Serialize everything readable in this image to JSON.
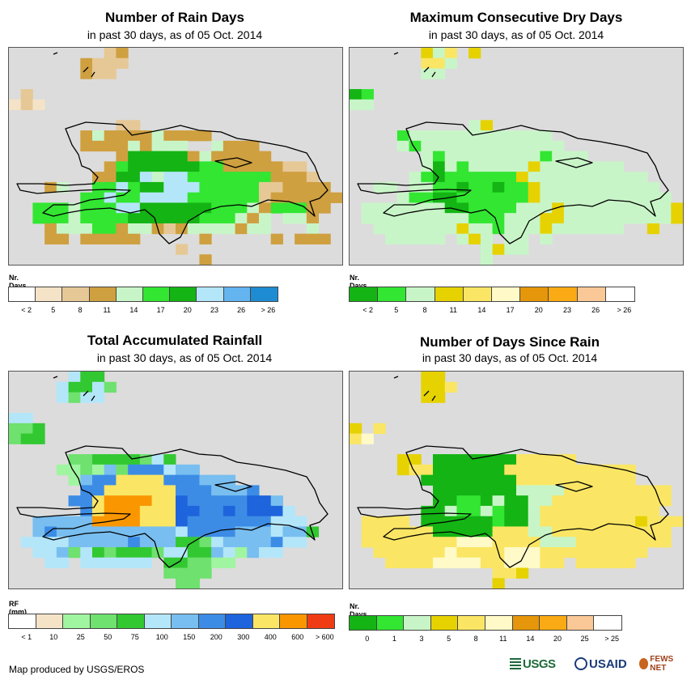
{
  "panels": [
    {
      "id": "rain-days",
      "title": "Number of Rain Days",
      "subtitle": "in past 30 days, as of 05 Oct. 2014",
      "legend_title": "Nr. Days",
      "legend_colors": [
        "#ffffff",
        "#f5e3c8",
        "#e6c896",
        "#cfa040",
        "#c8f5c8",
        "#32e632",
        "#14b414",
        "#b4e6fa",
        "#64b4f0",
        "#1e8cd2"
      ],
      "legend_labels": [
        "< 2",
        "5",
        "8",
        "11",
        "14",
        "17",
        "20",
        "23",
        "26",
        "> 26"
      ],
      "palette": {
        "a": "#f5e3c8",
        "b": "#e6c896",
        "c": "#cfa040",
        "d": "#c8f5c8",
        "e": "#32e632",
        "f": "#14b414",
        "g": "#b4e6fa",
        "h": "#64b4f0"
      },
      "grid": [
        "........bc..................",
        "......cbbb..................",
        "......cbb...................",
        "............................",
        ".b..........................",
        "aba.........................",
        "............................",
        ".........bb.................",
        "......cdccccdcccc...........",
        "......ccccdcddd..dccc.......",
        ".........cfffffcdccccc......",
        "........ceffffffeecccccbb...",
        ".......ccffgdggeeeeeeecccb..",
        "...cd..eegeffgggeeeeebbcccc.",
        "......eegeeggggeeeeeebcccccc",
        "..eeedeeeggffffffeeedceeecc.",
        "..eeedeeeeffffffeeedcd.ddc..",
        "...cdddeecddcbcddddcdd...d..",
        "...cc.ccccc.....c.....c.ccc.",
        "..............b.............",
        "................c..........."
      ]
    },
    {
      "id": "dry-days",
      "title": "Maximum Consecutive Dry Days",
      "subtitle": "in past 30 days, as of 05 Oct. 2014",
      "legend_title": "Nr. Days",
      "legend_colors": [
        "#14b414",
        "#32e632",
        "#c8f5c8",
        "#e6d200",
        "#fae664",
        "#fffac8",
        "#e6960a",
        "#faaa14",
        "#fac896",
        "#ffffff"
      ],
      "legend_labels": [
        "< 2",
        "5",
        "8",
        "11",
        "14",
        "17",
        "20",
        "23",
        "26",
        "> 26"
      ],
      "palette": {
        "a": "#14b414",
        "b": "#32e632",
        "c": "#c8f5c8",
        "d": "#e6d200",
        "e": "#fae664"
      },
      "grid": [
        "......dce.d.................",
        "......eec...................",
        "......cc....................",
        "............................",
        "ab..........................",
        "cc..........................",
        "............................",
        "..........cd................",
        "....bcccccccccccc...........",
        "....cbcccccccccccc..........",
        "......cbccccccccbccc........",
        "......cacbcccccdccccccc.....",
        ".....cbabbbbbbdcccccccccc...",
        "..cc.ccbbabbabbdcccccccccc..",
        "....cbbaabbbbbbdccccccccccc.",
        ".cccccccaabbbbcccdcccccccccd",
        ".cccccccccbbbcccddcccccccccd",
        "..cccccccdccbcccdcccccc..d..",
        "...ccccc.cdc.cc.c...........",
        "...........cdcc.............",
        "...........c................"
      ]
    },
    {
      "id": "rainfall",
      "title": "Total Accumulated Rainfall",
      "subtitle": "in past 30 days, as of 05 Oct. 2014",
      "legend_title": "RF (mm)",
      "legend_colors": [
        "#ffffff",
        "#f5e3c8",
        "#a0f5a0",
        "#6ee16e",
        "#32c832",
        "#b4e6fa",
        "#78bef0",
        "#3c8ce6",
        "#1e64dc",
        "#fae664",
        "#fa9600",
        "#f03c14"
      ],
      "legend_labels": [
        "< 1",
        "10",
        "25",
        "50",
        "75",
        "100",
        "150",
        "200",
        "300",
        "400",
        "600",
        "> 600"
      ],
      "palette": {
        "a": "#a0f5a0",
        "b": "#6ee16e",
        "c": "#32c832",
        "d": "#b4e6fa",
        "e": "#78bef0",
        "f": "#3c8ce6",
        "g": "#1e64dc",
        "h": "#fae664",
        "i": "#fa9600"
      },
      "grid": [
        ".....dcc....................",
        "....dccdb...................",
        "....dbdd....................",
        "............................",
        "dd..........................",
        "bbc.........................",
        "bcc.........................",
        "............................",
        ".....bbccccbdc..............",
        "....aabaebfffdee............",
        ".....aeffhhhhfffeee.........",
        "......ffhhhhhhfffeeef.......",
        ".....ffhiiiihhgfffffgge.....",
        "......fhiiihhhggffgfgggd....",
        "..eeeeeiiiihhhgfffffffddd...",
        "..efeeeeeeeeeedffffeeedeec..",
        ".ddddeeeeefeeeccbdeeeefdd...",
        "..ddebdcbcccbddccedaedd.....",
        "...dd.dddddd.ccbbaa.........",
        ".............bbbb...........",
        "..............bb............"
      ]
    },
    {
      "id": "since-rain",
      "title": "Number of Days Since Rain",
      "subtitle": "in past 30 days, as of 05 Oct. 2014",
      "legend_title": "Nr. Days",
      "legend_colors": [
        "#14b414",
        "#32e632",
        "#c8f5c8",
        "#e6d200",
        "#fae664",
        "#fffac8",
        "#e6960a",
        "#faaa14",
        "#fac896",
        "#ffffff"
      ],
      "legend_labels": [
        "0",
        "1",
        "3",
        "5",
        "8",
        "11",
        "14",
        "20",
        "25",
        "> 25"
      ],
      "palette": {
        "a": "#14b414",
        "b": "#32e632",
        "c": "#c8f5c8",
        "d": "#e6d200",
        "e": "#fae664",
        "f": "#fffac8"
      },
      "grid": [
        "......dd....................",
        "......dde...................",
        "......dd....................",
        "............................",
        "............................",
        "d.e.........................",
        "ef..........................",
        "............................",
        "....dd.aaaaaaaeeeee.........",
        "....deeaaaaaaeeeeeeeeeee....",
        "......aaaaaaaaeeeeeeeeee....",
        ".......aaaaaaacccceeeeeeeee.",
        ".......aabbacaacceeeeeeeeee.",
        "......aacbbcbaaceeeeeeeeee..",
        ".eeee.aaaaaabaaceeeeeeeedeee",
        ".eeeeeeaaaaaeeecceeeeeeeeee.",
        ".eeeeeeeefffeeeeccceeeeeeee.",
        "..eeeeeefeeeefffeeeeeeeee...",
        "...eeeeffffeefffee.eeeee....",
        "............eed.............",
        "............d..............."
      ]
    }
  ],
  "credit": "Map produced by USGS/EROS",
  "logos": [
    "USGS",
    "USAID",
    "FEWS NET"
  ]
}
